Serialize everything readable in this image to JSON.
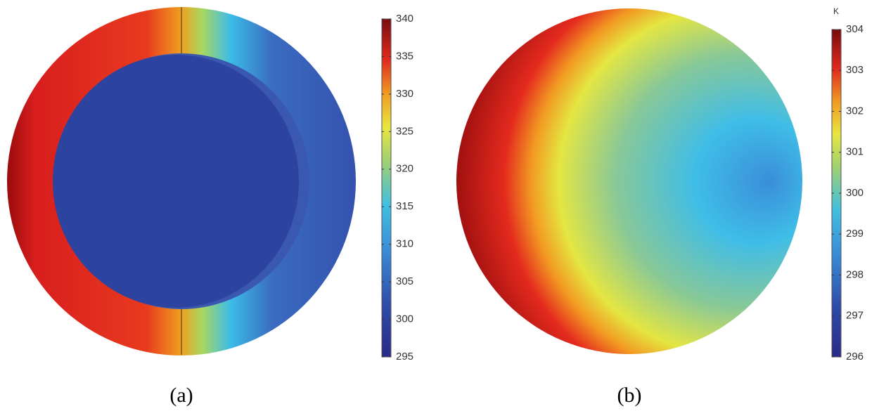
{
  "chart_data": [
    {
      "type": "colormap",
      "caption": "(a)",
      "ylim": [
        295,
        340
      ],
      "yticks": [
        295,
        300,
        305,
        310,
        315,
        320,
        325,
        330,
        335,
        340
      ]
    },
    {
      "type": "colormap",
      "caption": "(b)",
      "unit": "K",
      "ylim": [
        296,
        304
      ],
      "yticks": [
        296,
        297,
        298,
        299,
        300,
        301,
        302,
        303,
        304
      ]
    }
  ]
}
